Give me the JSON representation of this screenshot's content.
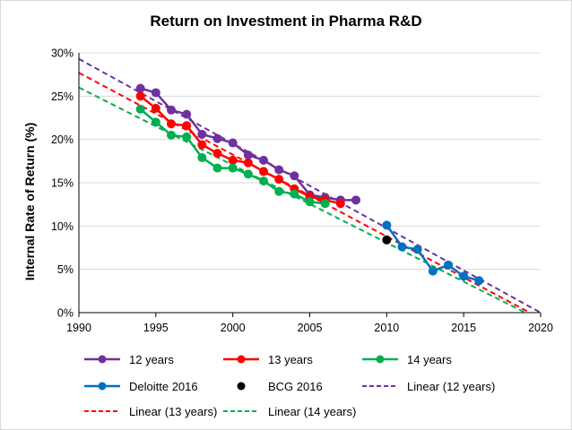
{
  "chart_data": {
    "type": "scatter",
    "title": "Return on Investment in Pharma R&D",
    "xlabel": "",
    "ylabel": "Internal Rate of Return (%)",
    "xlim": [
      1990,
      2020
    ],
    "ylim": [
      0,
      30
    ],
    "xticks": [
      1990,
      1995,
      2000,
      2005,
      2010,
      2015,
      2020
    ],
    "xtick_labels": [
      "1990",
      "1995",
      "2000",
      "2005",
      "2010",
      "2015",
      "2020"
    ],
    "yticks": [
      0,
      5,
      10,
      15,
      20,
      25,
      30
    ],
    "ytick_labels": [
      "0%",
      "5%",
      "10%",
      "15%",
      "20%",
      "25%",
      "30%"
    ],
    "grid": "horizontal",
    "legend_position": "bottom",
    "series": [
      {
        "name": "12 years",
        "kind": "line-markers",
        "color": "#7030a0",
        "x": [
          1994,
          1995,
          1996,
          1997,
          1998,
          1999,
          2000,
          2001,
          2002,
          2003,
          2004,
          2005,
          2006,
          2007,
          2008
        ],
        "y": [
          25.9,
          25.4,
          23.4,
          22.9,
          20.6,
          20.1,
          19.6,
          18.2,
          17.6,
          16.5,
          15.8,
          13.6,
          13.3,
          13.0,
          13.0
        ]
      },
      {
        "name": "13 years",
        "kind": "line-markers",
        "color": "#ff0000",
        "x": [
          1994,
          1995,
          1996,
          1997,
          1998,
          1999,
          2000,
          2001,
          2002,
          2003,
          2004,
          2005,
          2006,
          2007
        ],
        "y": [
          25.0,
          23.6,
          21.8,
          21.6,
          19.4,
          18.4,
          17.6,
          17.3,
          16.3,
          15.4,
          14.3,
          13.4,
          13.0,
          12.6
        ]
      },
      {
        "name": "14 years",
        "kind": "line-markers",
        "color": "#00b050",
        "x": [
          1994,
          1995,
          1996,
          1997,
          1998,
          1999,
          2000,
          2001,
          2002,
          2003,
          2004,
          2005,
          2006
        ],
        "y": [
          23.5,
          22.0,
          20.5,
          20.3,
          17.9,
          16.7,
          16.7,
          16.0,
          15.2,
          14.0,
          13.7,
          12.8,
          12.6
        ]
      },
      {
        "name": "Deloitte 2016",
        "kind": "line-markers",
        "color": "#0070c0",
        "x": [
          2010,
          2011,
          2012,
          2013,
          2014,
          2015,
          2016
        ],
        "y": [
          10.1,
          7.6,
          7.3,
          4.8,
          5.5,
          4.2,
          3.7
        ]
      },
      {
        "name": "BCG 2016",
        "kind": "markers",
        "color": "#000000",
        "x": [
          2010
        ],
        "y": [
          8.4
        ]
      },
      {
        "name": "Linear (12 years)",
        "kind": "dashed-line",
        "color": "#7030a0",
        "x": [
          1990,
          2020
        ],
        "y": [
          29.3,
          0.0
        ]
      },
      {
        "name": "Linear (13 years)",
        "kind": "dashed-line",
        "color": "#ff0000",
        "x": [
          1990,
          2019.3
        ],
        "y": [
          27.7,
          0.0
        ]
      },
      {
        "name": "Linear (14 years)",
        "kind": "dashed-line",
        "color": "#00b050",
        "x": [
          1990,
          2019
        ],
        "y": [
          26.0,
          0.0
        ]
      }
    ]
  }
}
